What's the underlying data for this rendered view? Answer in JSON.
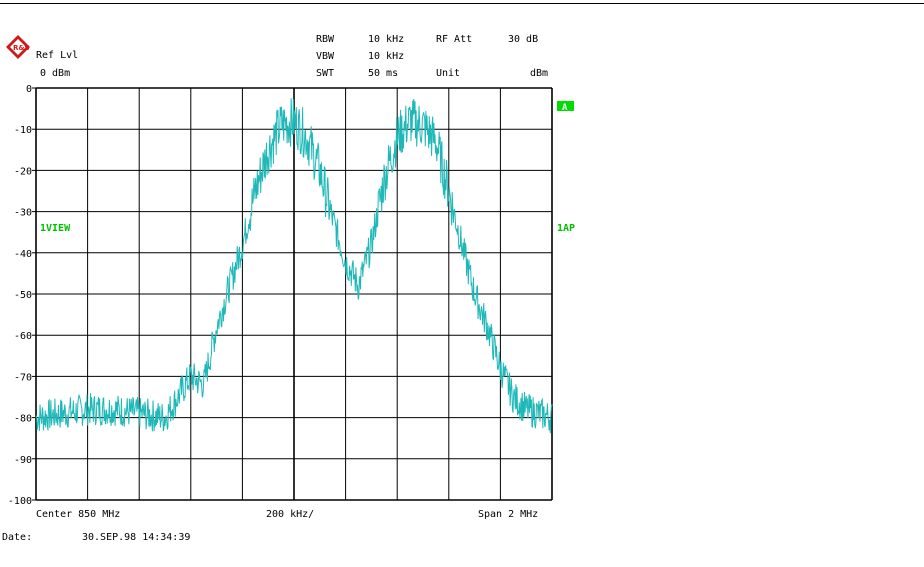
{
  "header": {
    "ref_lvl_label": "Ref Lvl",
    "ref_lvl_value": "0 dBm",
    "rbw_label": "RBW",
    "rbw_value": "10 kHz",
    "vbw_label": "VBW",
    "vbw_value": "10 kHz",
    "swt_label": "SWT",
    "swt_value": "50 ms",
    "rf_att_label": "RF Att",
    "rf_att_value": "30 dB",
    "unit_label": "Unit",
    "unit_value": "dBm"
  },
  "markers": {
    "trace_a": "A",
    "view": "1VIEW",
    "ap": "1AP"
  },
  "footer": {
    "center": "Center 850 MHz",
    "div": "200 kHz/",
    "span": "Span 2 MHz",
    "date_label": "Date:",
    "date_value": "30.SEP.98  14:34:39"
  },
  "colors": {
    "trace": "#1fb8b8",
    "marker_bg": "#00dd00",
    "grid": "#000000"
  },
  "chart_data": {
    "type": "line",
    "xlabel": "",
    "ylabel": "",
    "xlim": [
      849,
      851
    ],
    "ylim": [
      -100,
      0
    ],
    "grid": true,
    "yticks": [
      "0",
      "-10",
      "-20",
      "-30",
      "-40",
      "-50",
      "-60",
      "-70",
      "-80",
      "-90",
      "-100"
    ],
    "series": [
      {
        "x": [
          849.0,
          849.1,
          849.2,
          849.3,
          849.4,
          849.5,
          849.6,
          849.65,
          849.7,
          849.75,
          849.8,
          849.85,
          849.9,
          849.95,
          850.0,
          850.05,
          850.1,
          850.15,
          850.2,
          850.25,
          850.3,
          850.35,
          850.4,
          850.45,
          850.5,
          850.55,
          850.6,
          850.65,
          850.7,
          850.75,
          850.8,
          850.85,
          850.9,
          850.95,
          851.0
        ],
        "values": [
          -80,
          -79,
          -78,
          -78,
          -79,
          -80,
          -70,
          -72,
          -58,
          -48,
          -38,
          -25,
          -15,
          -9,
          -8,
          -12,
          -20,
          -32,
          -42,
          -48,
          -38,
          -22,
          -12,
          -8,
          -9,
          -13,
          -25,
          -38,
          -50,
          -58,
          -68,
          -75,
          -78,
          -79,
          -80
        ]
      }
    ]
  }
}
